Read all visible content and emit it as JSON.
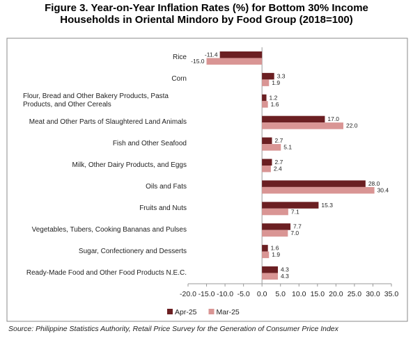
{
  "chart_data": {
    "type": "hbar",
    "title": "Figure 3. Year-on-Year Inflation Rates (%) for Bottom 30% Income Households in Oriental Mindoro by Food Group (2018=100)",
    "categories": [
      "Rice",
      "Corn",
      "Flour, Bread and Other Bakery Products, Pasta Products, and Other Cereals",
      "Meat and Other Parts of Slaughtered Land Animals",
      "Fish and Other Seafood",
      "Milk, Other Dairy Products, and Eggs",
      "Oils and Fats",
      "Fruits and Nuts",
      "Vegetables, Tubers, Cooking Bananas and Pulses",
      "Sugar, Confectionery and Desserts",
      "Ready-Made Food and Other Food Products N.E.C."
    ],
    "series": [
      {
        "name": "Apr-25",
        "color": "#6b1f22",
        "values": [
          -11.4,
          3.3,
          1.2,
          17.0,
          2.7,
          2.7,
          28.0,
          15.3,
          7.7,
          1.6,
          4.3
        ],
        "value_labels": [
          "-11.4",
          "3.3",
          "1.2",
          "17.0",
          "2.7",
          "2.7",
          "28.0",
          "15.3",
          "7.7",
          "1.6",
          "4.3"
        ]
      },
      {
        "name": "Mar-25",
        "color": "#d99594",
        "values": [
          -15.0,
          1.9,
          1.6,
          22.0,
          5.1,
          2.4,
          30.4,
          7.1,
          7.0,
          1.9,
          4.3
        ],
        "value_labels": [
          "-15.0",
          "1.9",
          "1.6",
          "22.0",
          "5.1",
          "2.4",
          "30.4",
          "7.1",
          "7.0",
          "1.9",
          "4.3"
        ]
      }
    ],
    "xlim": [
      -20,
      35
    ],
    "xticks": [
      {
        "value": -20,
        "label": "-20.0"
      },
      {
        "value": -15,
        "label": "-15.0"
      },
      {
        "value": -10,
        "label": "-10.0"
      },
      {
        "value": -5,
        "label": "-5.0"
      },
      {
        "value": 0,
        "label": "0.0"
      },
      {
        "value": 5,
        "label": "5.0"
      },
      {
        "value": 10,
        "label": "10.0"
      },
      {
        "value": 15,
        "label": "15.0"
      },
      {
        "value": 20,
        "label": "20.0"
      },
      {
        "value": 25,
        "label": "25.0"
      },
      {
        "value": 30,
        "label": "30.0"
      },
      {
        "value": 35,
        "label": "35.0"
      }
    ],
    "legend": "bottom",
    "source": "Source: Philippine Statistics Authority, Retail Price Survey for the Generation of Consumer Price Index"
  }
}
